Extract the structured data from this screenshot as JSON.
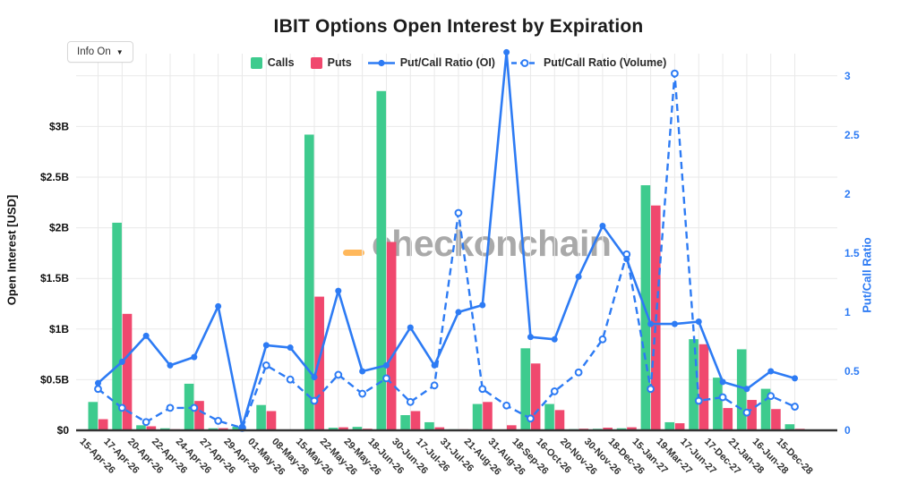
{
  "header": {
    "title": "IBIT Options Open Interest by Expiration",
    "info_button_label": "Info On",
    "info_button_caret": "▼"
  },
  "legend": {
    "items": [
      {
        "label": "Calls",
        "swatch": "square",
        "color": "#3ecb8e"
      },
      {
        "label": "Puts",
        "swatch": "square",
        "color": "#f0486e"
      },
      {
        "label": "Put/Call Ratio (OI)",
        "swatch": "solid-line-dot",
        "color": "#2d7bf4"
      },
      {
        "label": "Put/Call Ratio (Volume)",
        "swatch": "dashed-line-circle",
        "color": "#2d7bf4"
      }
    ]
  },
  "watermark": {
    "text": "checkonchain",
    "logo": "orange-dash-icon",
    "color": "#a9a9a9",
    "logo_color": "#ffb85c"
  },
  "colors": {
    "calls": "#3ecb8e",
    "puts": "#f0486e",
    "ratio_line": "#2d7bf4",
    "grid": "#e9e9e9",
    "axis_line": "#333333",
    "x_label": "#333333",
    "left_tick": "#111111",
    "right_tick": "#2d7bf4"
  },
  "chart_data": {
    "type": "bar",
    "subtype": "grouped bars with two overlay line series on secondary axis",
    "title": "IBIT Options Open Interest by Expiration",
    "xlabel": "",
    "ylabel_left": "Open Interest [USD]",
    "ylabel_right": "Put/Call Ratio",
    "grid": true,
    "legend_position": "top",
    "categories": [
      "15-Apr-26",
      "17-Apr-26",
      "20-Apr-26",
      "22-Apr-26",
      "24-Apr-26",
      "27-Apr-26",
      "29-Apr-26",
      "01-May-26",
      "08-May-26",
      "15-May-26",
      "22-May-26",
      "29-May-26",
      "18-Jun-26",
      "30-Jun-26",
      "17-Jul-26",
      "31-Jul-26",
      "21-Aug-26",
      "31-Aug-26",
      "18-Sep-26",
      "16-Oct-26",
      "20-Nov-26",
      "30-Nov-26",
      "18-Dec-26",
      "15-Jan-27",
      "19-Mar-27",
      "17-Jun-27",
      "17-Dec-27",
      "21-Jan-28",
      "16-Jun-28",
      "15-Dec-28"
    ],
    "series": [
      {
        "name": "Calls",
        "type": "bar",
        "axis": "left",
        "units": "USD billions",
        "values": [
          0.28,
          2.05,
          0.05,
          0.02,
          0.46,
          0.02,
          0.035,
          0.25,
          0.005,
          2.92,
          0.025,
          0.034,
          3.35,
          0.15,
          0.08,
          0.01,
          0.26,
          0.005,
          0.81,
          0.26,
          0.012,
          0.015,
          0.02,
          2.42,
          0.08,
          0.9,
          0.52,
          0.8,
          0.41,
          0.06
        ]
      },
      {
        "name": "Puts",
        "type": "bar",
        "axis": "left",
        "units": "USD billions",
        "values": [
          0.11,
          1.15,
          0.04,
          0.011,
          0.29,
          0.021,
          0.001,
          0.19,
          0.004,
          1.32,
          0.03,
          0.016,
          1.86,
          0.19,
          0.03,
          0.01,
          0.28,
          0.05,
          0.66,
          0.2,
          0.016,
          0.026,
          0.03,
          2.22,
          0.07,
          0.85,
          0.22,
          0.3,
          0.21,
          0.015
        ]
      },
      {
        "name": "Put/Call Ratio (OI)",
        "type": "line",
        "style": "solid",
        "marker": "filled-dot",
        "axis": "right",
        "values": [
          0.4,
          0.58,
          0.8,
          0.55,
          0.62,
          1.05,
          0.03,
          0.72,
          0.7,
          0.45,
          1.18,
          0.5,
          0.55,
          0.87,
          0.55,
          1.0,
          1.06,
          3.2,
          0.79,
          0.77,
          1.3,
          1.73,
          1.45,
          0.9,
          0.9,
          0.92,
          0.41,
          0.35,
          0.5,
          0.44
        ]
      },
      {
        "name": "Put/Call Ratio (Volume)",
        "type": "line",
        "style": "dashed",
        "marker": "open-circle",
        "axis": "right",
        "values": [
          0.35,
          0.19,
          0.07,
          0.19,
          0.19,
          0.08,
          0.02,
          0.55,
          0.43,
          0.25,
          0.47,
          0.31,
          0.44,
          0.24,
          0.38,
          1.84,
          0.35,
          0.21,
          0.1,
          0.33,
          0.49,
          0.77,
          1.49,
          0.35,
          3.02,
          0.25,
          0.28,
          0.15,
          0.29,
          0.2
        ]
      }
    ],
    "left_axis": {
      "title": "Open Interest [USD]",
      "range_B": [
        0,
        3.72
      ],
      "ticks": [
        {
          "v": 0,
          "label": "$0"
        },
        {
          "v": 0.5,
          "label": "$0.5B"
        },
        {
          "v": 1,
          "label": "$1B"
        },
        {
          "v": 1.5,
          "label": "$1.5B"
        },
        {
          "v": 2,
          "label": "$2B"
        },
        {
          "v": 2.5,
          "label": "$2.5B"
        },
        {
          "v": 3,
          "label": "$3B"
        }
      ]
    },
    "right_axis": {
      "title": "Put/Call Ratio",
      "range": [
        0,
        3
      ],
      "ticks": [
        {
          "v": 0,
          "label": "0"
        },
        {
          "v": 0.5,
          "label": "0.5"
        },
        {
          "v": 1,
          "label": "1"
        },
        {
          "v": 1.5,
          "label": "1.5"
        },
        {
          "v": 2,
          "label": "2"
        },
        {
          "v": 2.5,
          "label": "2.5"
        },
        {
          "v": 3,
          "label": "3"
        }
      ]
    }
  }
}
